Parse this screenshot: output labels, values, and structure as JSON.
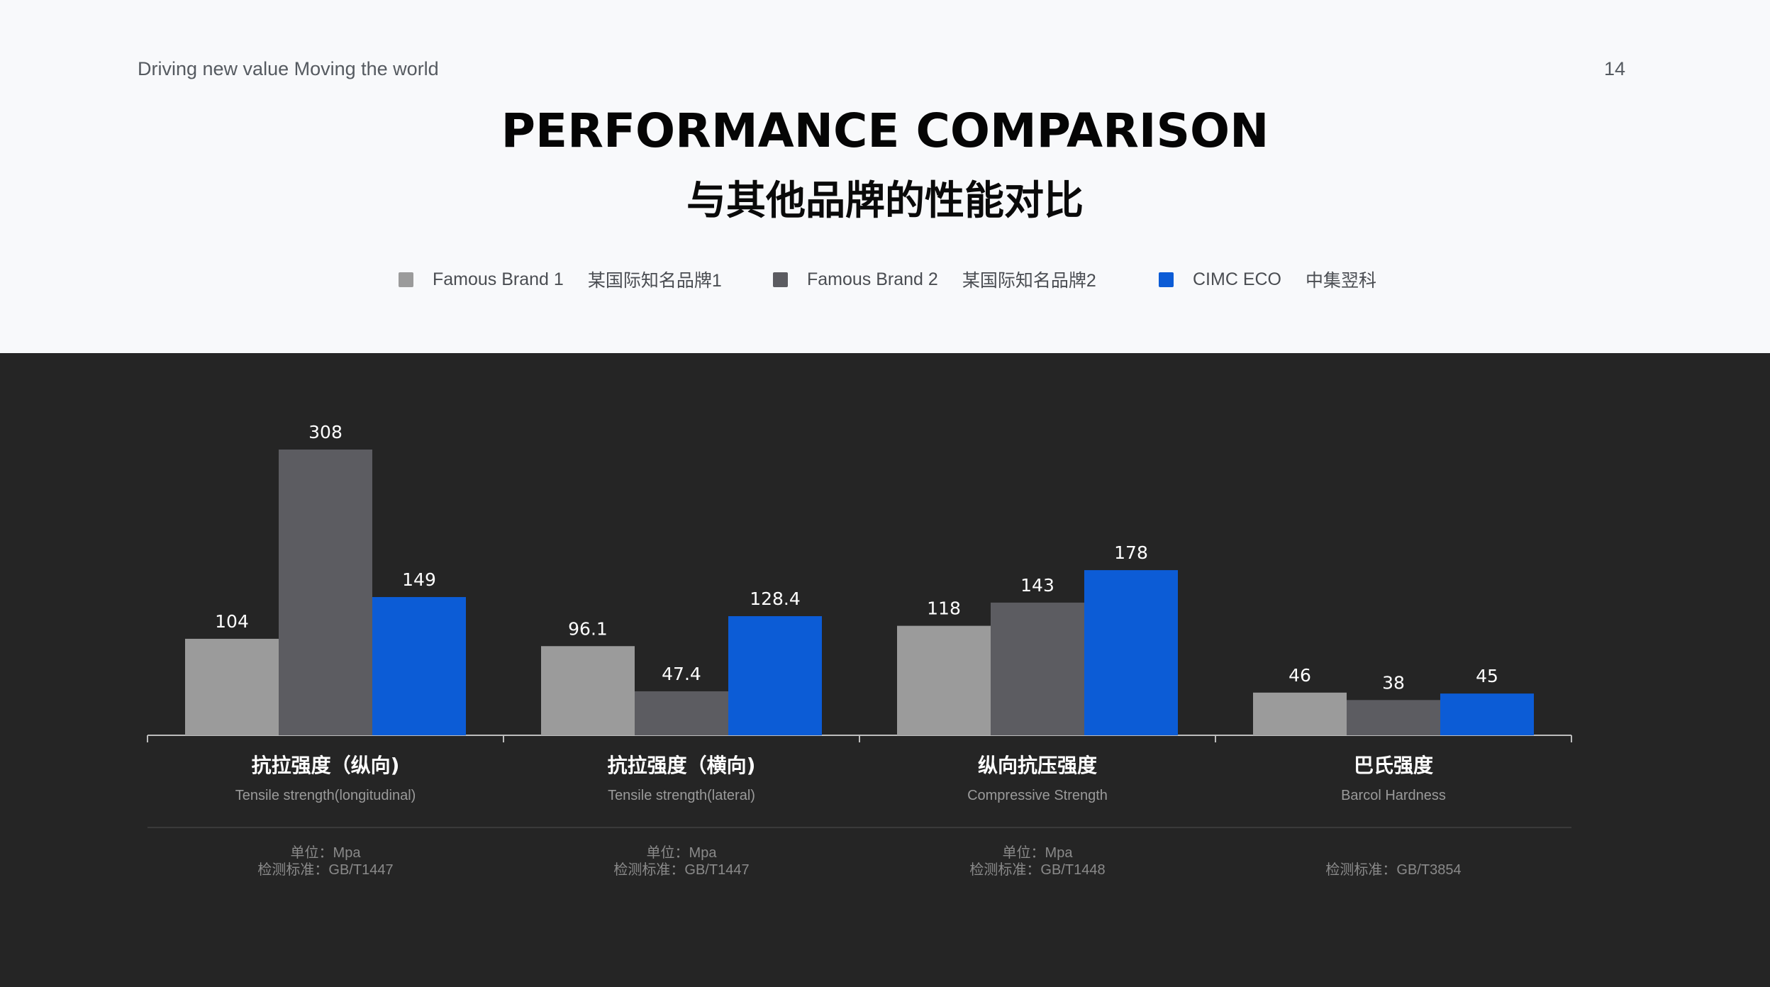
{
  "header": {
    "tagline": "Driving new value Moving the world",
    "page_number": "14",
    "title": "PERFORMANCE COMPARISON",
    "subtitle": "与其他品牌的性能对比"
  },
  "legend": [
    {
      "name": "Famous Brand 1",
      "cn": "某国际知名品牌1",
      "color": "#9b9b9b"
    },
    {
      "name": "Famous Brand 2",
      "cn": "某国际知名品牌2",
      "color": "#5c5c61"
    },
    {
      "name": "CIMC  ECO",
      "cn": "中集翌科",
      "color": "#0c5cd6"
    }
  ],
  "chart_data": {
    "type": "bar",
    "categories": [
      {
        "cn": "抗拉强度（纵向)",
        "en": "Tensile strength(longitudinal)",
        "unit": "单位：Mpa",
        "standard": "检测标准：GB/T1447"
      },
      {
        "cn": "抗拉强度（横向)",
        "en": "Tensile strength(lateral)",
        "unit": "单位：Mpa",
        "standard": "检测标准：GB/T1447"
      },
      {
        "cn": "纵向抗压强度",
        "en": "Compressive Strength",
        "unit": "单位：Mpa",
        "standard": "检测标准：GB/T1448"
      },
      {
        "cn": "巴氏强度",
        "en": "Barcol Hardness",
        "unit": "",
        "standard": "检测标准：GB/T3854"
      }
    ],
    "series": [
      {
        "name": "Famous Brand 1",
        "color": "#9b9b9b",
        "values": [
          104,
          96.1,
          118,
          46
        ],
        "labels": [
          "104",
          "96.1",
          "118",
          "46"
        ]
      },
      {
        "name": "Famous Brand 2",
        "color": "#5c5c61",
        "values": [
          308,
          47.4,
          143,
          38
        ],
        "labels": [
          "308",
          "47.4",
          "143",
          "38"
        ]
      },
      {
        "name": "CIMC  ECO",
        "color": "#0c5cd6",
        "values": [
          149,
          128.4,
          178,
          45
        ],
        "labels": [
          "149",
          "128.4",
          "178",
          "45"
        ]
      }
    ],
    "ylim": [
      0,
      308
    ],
    "grid": false,
    "legend_position": "top"
  }
}
